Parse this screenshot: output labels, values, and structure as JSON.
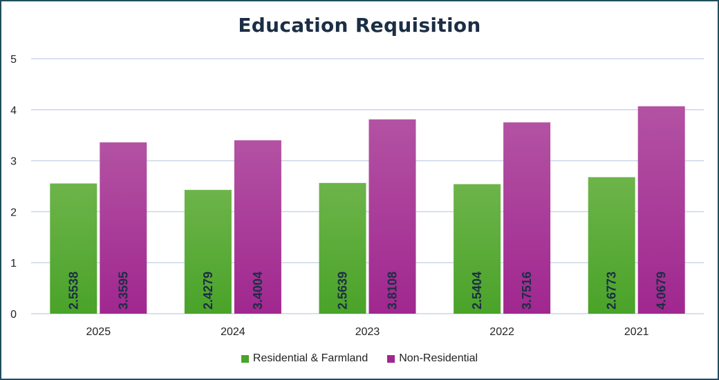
{
  "chart_data": {
    "type": "bar",
    "title": "Education Requisition",
    "categories": [
      "2025",
      "2024",
      "2023",
      "2022",
      "2021"
    ],
    "series": [
      {
        "name": "Residential & Farmland",
        "values": [
          2.5538,
          2.4279,
          2.5639,
          2.5404,
          2.6773
        ],
        "labels": [
          "2.5538",
          "2.4279",
          "2.5639",
          "2.5404",
          "2.6773"
        ],
        "color": "#4aa329"
      },
      {
        "name": "Non-Residential",
        "values": [
          3.3595,
          3.4004,
          3.8108,
          3.7516,
          4.0679
        ],
        "labels": [
          "3.3595",
          "3.4004",
          "3.8108",
          "3.7516",
          "4.0679"
        ],
        "color": "#a0278f"
      }
    ],
    "yticks": [
      "0",
      "1",
      "2",
      "3",
      "4",
      "5"
    ],
    "ylim": [
      0,
      5
    ],
    "grid": true,
    "legend_position": "bottom",
    "data_labels": "inside-base-rotated"
  },
  "colors": {
    "border": "#1f4e5f",
    "gridline": "#c9d6e8",
    "title": "#1b2e45"
  }
}
